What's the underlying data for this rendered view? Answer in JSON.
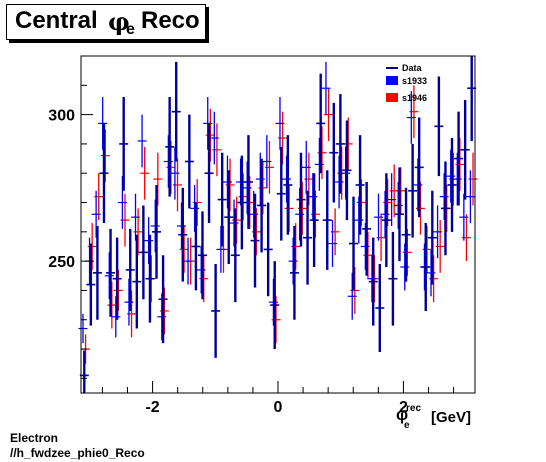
{
  "title": {
    "main": "Central",
    "phi": "φ",
    "sub": "e",
    "end": "Reco"
  },
  "footer": {
    "line1": "Electron",
    "line2": "//h_fwdzee_phie0_Reco"
  },
  "colors": {
    "data": "#000099",
    "s1933": "#0000ff",
    "s1946": "#ff0000",
    "axis": "#000000"
  },
  "chart_data": {
    "type": "scatter",
    "title": "Central φe Reco",
    "xlabel": {
      "phi": "φ",
      "sub": "e",
      "sup": "rec",
      "unit": "[GeV]"
    },
    "xlim": [
      -3.1416,
      3.1416
    ],
    "ylim": [
      205,
      320
    ],
    "xticks": [
      -2,
      0,
      2
    ],
    "yticks": [
      250,
      300
    ],
    "legend": {
      "position": "top-right",
      "entries": [
        "Data",
        "s1933",
        "s1946"
      ]
    },
    "x": [
      -3.0892,
      -2.9845,
      -2.8798,
      -2.7751,
      -2.6704,
      -2.5656,
      -2.4609,
      -2.3562,
      -2.2515,
      -2.1468,
      -2.042,
      -1.9373,
      -1.8326,
      -1.7279,
      -1.6232,
      -1.5184,
      -1.4137,
      -1.309,
      -1.2043,
      -1.0996,
      -0.9948,
      -0.8901,
      -0.7854,
      -0.6807,
      -0.576,
      -0.4712,
      -0.3665,
      -0.2618,
      -0.1571,
      -0.0524,
      0.0524,
      0.1571,
      0.2618,
      0.3665,
      0.4712,
      0.576,
      0.6807,
      0.7854,
      0.8901,
      0.9948,
      1.0996,
      1.2043,
      1.309,
      1.4137,
      1.5184,
      1.6232,
      1.7279,
      1.8326,
      1.9373,
      2.042,
      2.1468,
      2.2515,
      2.3562,
      2.4609,
      2.5656,
      2.6704,
      2.7751,
      2.8798,
      2.9845,
      3.0892
    ],
    "series": [
      {
        "name": "Data",
        "values": [
          211,
          242,
          246,
          280,
          246,
          244,
          290,
          247,
          243,
          253,
          244,
          260,
          237,
          289,
          301,
          259,
          284,
          255,
          252,
          280,
          233,
          271,
          265,
          252,
          270,
          277,
          257,
          269,
          254,
          235,
          273,
          276,
          246,
          271,
          258,
          264,
          297,
          264,
          287,
          290,
          281,
          256,
          276,
          261,
          243,
          234,
          264,
          244,
          266,
          259,
          274,
          282,
          248,
          258,
          296,
          268,
          276,
          285,
          288,
          309
        ]
      },
      {
        "name": "s1933",
        "values": [
          227,
          250,
          266,
          297,
          245,
          231,
          270,
          236,
          265,
          291,
          257,
          262,
          231,
          284,
          280,
          262,
          250,
          268,
          247,
          297,
          292,
          254,
          277,
          263,
          277,
          275,
          266,
          278,
          284,
          236,
          297,
          278,
          250,
          266,
          282,
          272,
          283,
          309,
          256,
          277,
          280,
          238,
          264,
          255,
          244,
          265,
          266,
          271,
          269,
          248,
          299,
          276,
          248,
          246,
          260,
          272,
          279,
          278,
          265,
          272
        ]
      },
      {
        "name": "s1946",
        "values": [
          220,
          255,
          272,
          286,
          235,
          240,
          264,
          232,
          260,
          280,
          244,
          278,
          233,
          282,
          276,
          254,
          250,
          270,
          244,
          293,
          288,
          254,
          276,
          264,
          272,
          270,
          260,
          275,
          282,
          230,
          292,
          268,
          255,
          268,
          278,
          266,
          287,
          300,
          260,
          280,
          290,
          240,
          270,
          252,
          244,
          258,
          270,
          274,
          274,
          253,
          301,
          268,
          254,
          244,
          255,
          268,
          278,
          283,
          258,
          278
        ]
      }
    ],
    "yerr": [
      8.5,
      14,
      16,
      17,
      15,
      14,
      16,
      14,
      16,
      16,
      15,
      16,
      15,
      17,
      17,
      16,
      16,
      15,
      15,
      17,
      16,
      16,
      16,
      16,
      16,
      16,
      16,
      16,
      16,
      15,
      16,
      17,
      16,
      16,
      16,
      16,
      17,
      17,
      17,
      17,
      17,
      16,
      17,
      16,
      15,
      15,
      16,
      16,
      16,
      16,
      16,
      17,
      15,
      16,
      17,
      16,
      16,
      16,
      17,
      18
    ],
    "yerr_mc": [
      5,
      8,
      8,
      9,
      8,
      7,
      9,
      8,
      8,
      9,
      8,
      9,
      8,
      9,
      9,
      8,
      8,
      8,
      8,
      9,
      9,
      8,
      9,
      8,
      8,
      9,
      8,
      9,
      9,
      8,
      9,
      8,
      8,
      9,
      9,
      8,
      9,
      9,
      8,
      9,
      9,
      8,
      8,
      8,
      8,
      8,
      8,
      9,
      8,
      8,
      9,
      9,
      8,
      8,
      9,
      8,
      9,
      9,
      8,
      9
    ]
  }
}
